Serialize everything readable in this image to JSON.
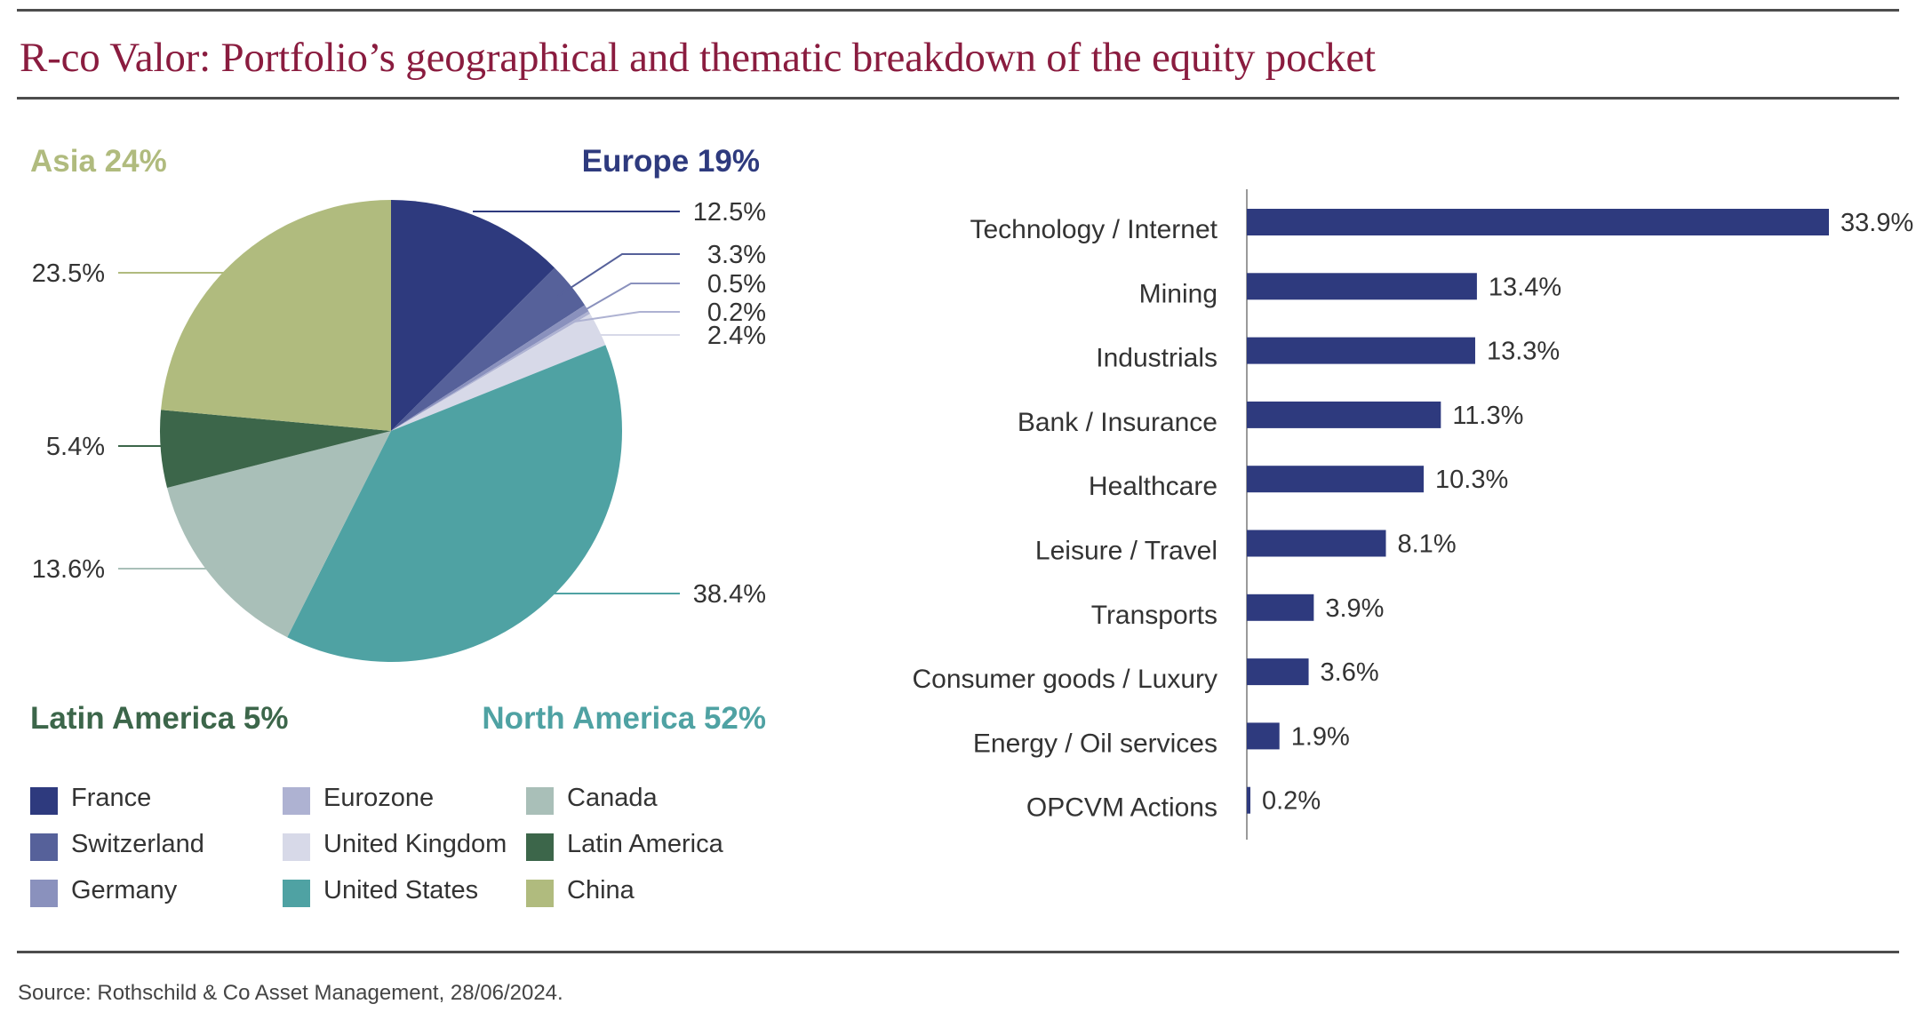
{
  "title": "R-co Valor: Portfolio’s geographical and thematic breakdown of the equity pocket",
  "source": "Source: Rothschild & Co Asset Management, 28/06/2024.",
  "chart_data": [
    {
      "type": "pie",
      "regions": [
        {
          "label": "Europe 19%",
          "color": "#2e3a7e"
        },
        {
          "label": "Asia 24%",
          "color": "#b0bb7e"
        },
        {
          "label": "Latin America 5%",
          "color": "#3c664a"
        },
        {
          "label": "North America 52%",
          "color": "#4fa2a3"
        }
      ],
      "slices": [
        {
          "name": "France",
          "value": 12.5,
          "label": "12.5%",
          "color": "#2e3a7e"
        },
        {
          "name": "Switzerland",
          "value": 3.3,
          "label": "3.3%",
          "color": "#56619a"
        },
        {
          "name": "Germany",
          "value": 0.5,
          "label": "0.5%",
          "color": "#8a91bd"
        },
        {
          "name": "Eurozone",
          "value": 0.2,
          "label": "0.2%",
          "color": "#aeb2d2"
        },
        {
          "name": "United Kingdom",
          "value": 2.4,
          "label": "2.4%",
          "color": "#d7d9e8"
        },
        {
          "name": "United States",
          "value": 38.4,
          "label": "38.4%",
          "color": "#4fa2a3"
        },
        {
          "name": "Canada",
          "value": 13.6,
          "label": "13.6%",
          "color": "#a9bfb8"
        },
        {
          "name": "Latin America",
          "value": 5.4,
          "label": "5.4%",
          "color": "#3c664a"
        },
        {
          "name": "China",
          "value": 23.5,
          "label": "23.5%",
          "color": "#b0bb7e"
        }
      ],
      "legend": [
        {
          "name": "France",
          "color": "#2e3a7e"
        },
        {
          "name": "Switzerland",
          "color": "#56619a"
        },
        {
          "name": "Germany",
          "color": "#8a91bd"
        },
        {
          "name": "Eurozone",
          "color": "#aeb2d2"
        },
        {
          "name": "United Kingdom",
          "color": "#d7d9e8"
        },
        {
          "name": "United States",
          "color": "#4fa2a3"
        },
        {
          "name": "Canada",
          "color": "#a9bfb8"
        },
        {
          "name": "Latin America",
          "color": "#3c664a"
        },
        {
          "name": "China",
          "color": "#b0bb7e"
        }
      ]
    },
    {
      "type": "bar",
      "orientation": "horizontal",
      "color": "#2e3a7e",
      "xlim": [
        0,
        33.9
      ],
      "categories": [
        "Technology / Internet",
        "Mining",
        "Industrials",
        "Bank / Insurance",
        "Healthcare",
        "Leisure / Travel",
        "Transports",
        "Consumer goods / Luxury",
        "Energy / Oil services",
        "OPCVM Actions"
      ],
      "values": [
        33.9,
        13.4,
        13.3,
        11.3,
        10.3,
        8.1,
        3.9,
        3.6,
        1.9,
        0.2
      ],
      "value_labels": [
        "33.9%",
        "13.4%",
        "13.3%",
        "11.3%",
        "10.3%",
        "8.1%",
        "3.9%",
        "3.6%",
        "1.9%",
        "0.2%"
      ]
    }
  ]
}
